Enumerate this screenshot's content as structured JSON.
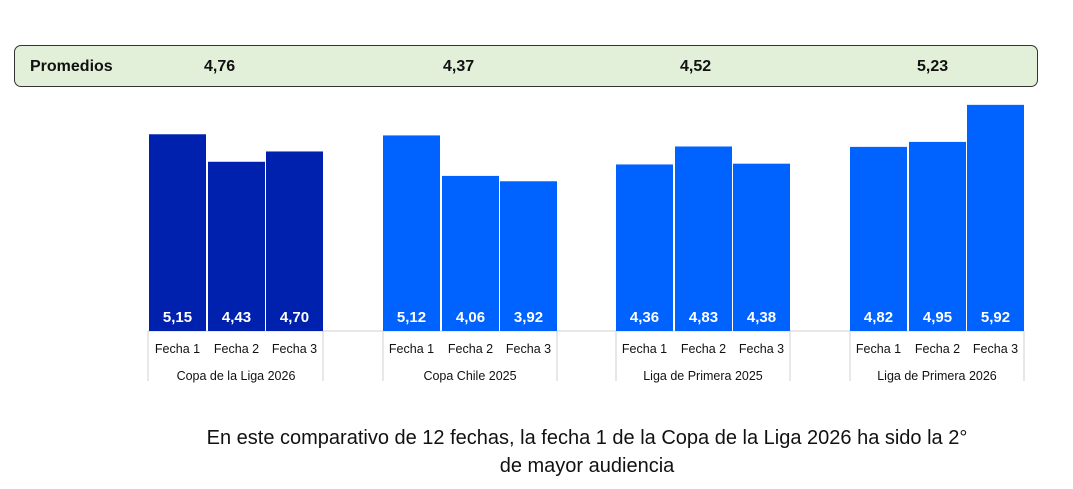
{
  "promedios": {
    "label": "Promedios",
    "values": [
      "4,76",
      "4,37",
      "4,52",
      "5,23"
    ]
  },
  "chart_data": {
    "type": "bar",
    "title": "",
    "xlabel": "",
    "ylabel": "",
    "ylim": [
      0,
      6
    ],
    "grid": false,
    "groups": [
      {
        "name": "Copa de la Liga 2026",
        "color": "#0021AE",
        "categories": [
          "Fecha 1",
          "Fecha 2",
          "Fecha 3"
        ],
        "values": [
          5.15,
          4.43,
          4.7
        ],
        "labels": [
          "5,15",
          "4,43",
          "4,70"
        ]
      },
      {
        "name": "Copa Chile 2025",
        "color": "#0062FF",
        "categories": [
          "Fecha 1",
          "Fecha 2",
          "Fecha 3"
        ],
        "values": [
          5.12,
          4.06,
          3.92
        ],
        "labels": [
          "5,12",
          "4,06",
          "3,92"
        ]
      },
      {
        "name": "Liga de Primera 2025",
        "color": "#0062FF",
        "categories": [
          "Fecha 1",
          "Fecha 2",
          "Fecha 3"
        ],
        "values": [
          4.36,
          4.83,
          4.38
        ],
        "labels": [
          "4,36",
          "4,83",
          "4,38"
        ]
      },
      {
        "name": "Liga de Primera 2026",
        "color": "#0062FF",
        "categories": [
          "Fecha 1",
          "Fecha 2",
          "Fecha 3"
        ],
        "values": [
          4.82,
          4.95,
          5.92
        ],
        "labels": [
          "4,82",
          "4,95",
          "5,92"
        ]
      }
    ]
  },
  "caption": [
    "En este comparativo de 12 fechas, la fecha 1 de la Copa de la Liga 2026 ha sido la 2°",
    "de mayor audiencia"
  ]
}
